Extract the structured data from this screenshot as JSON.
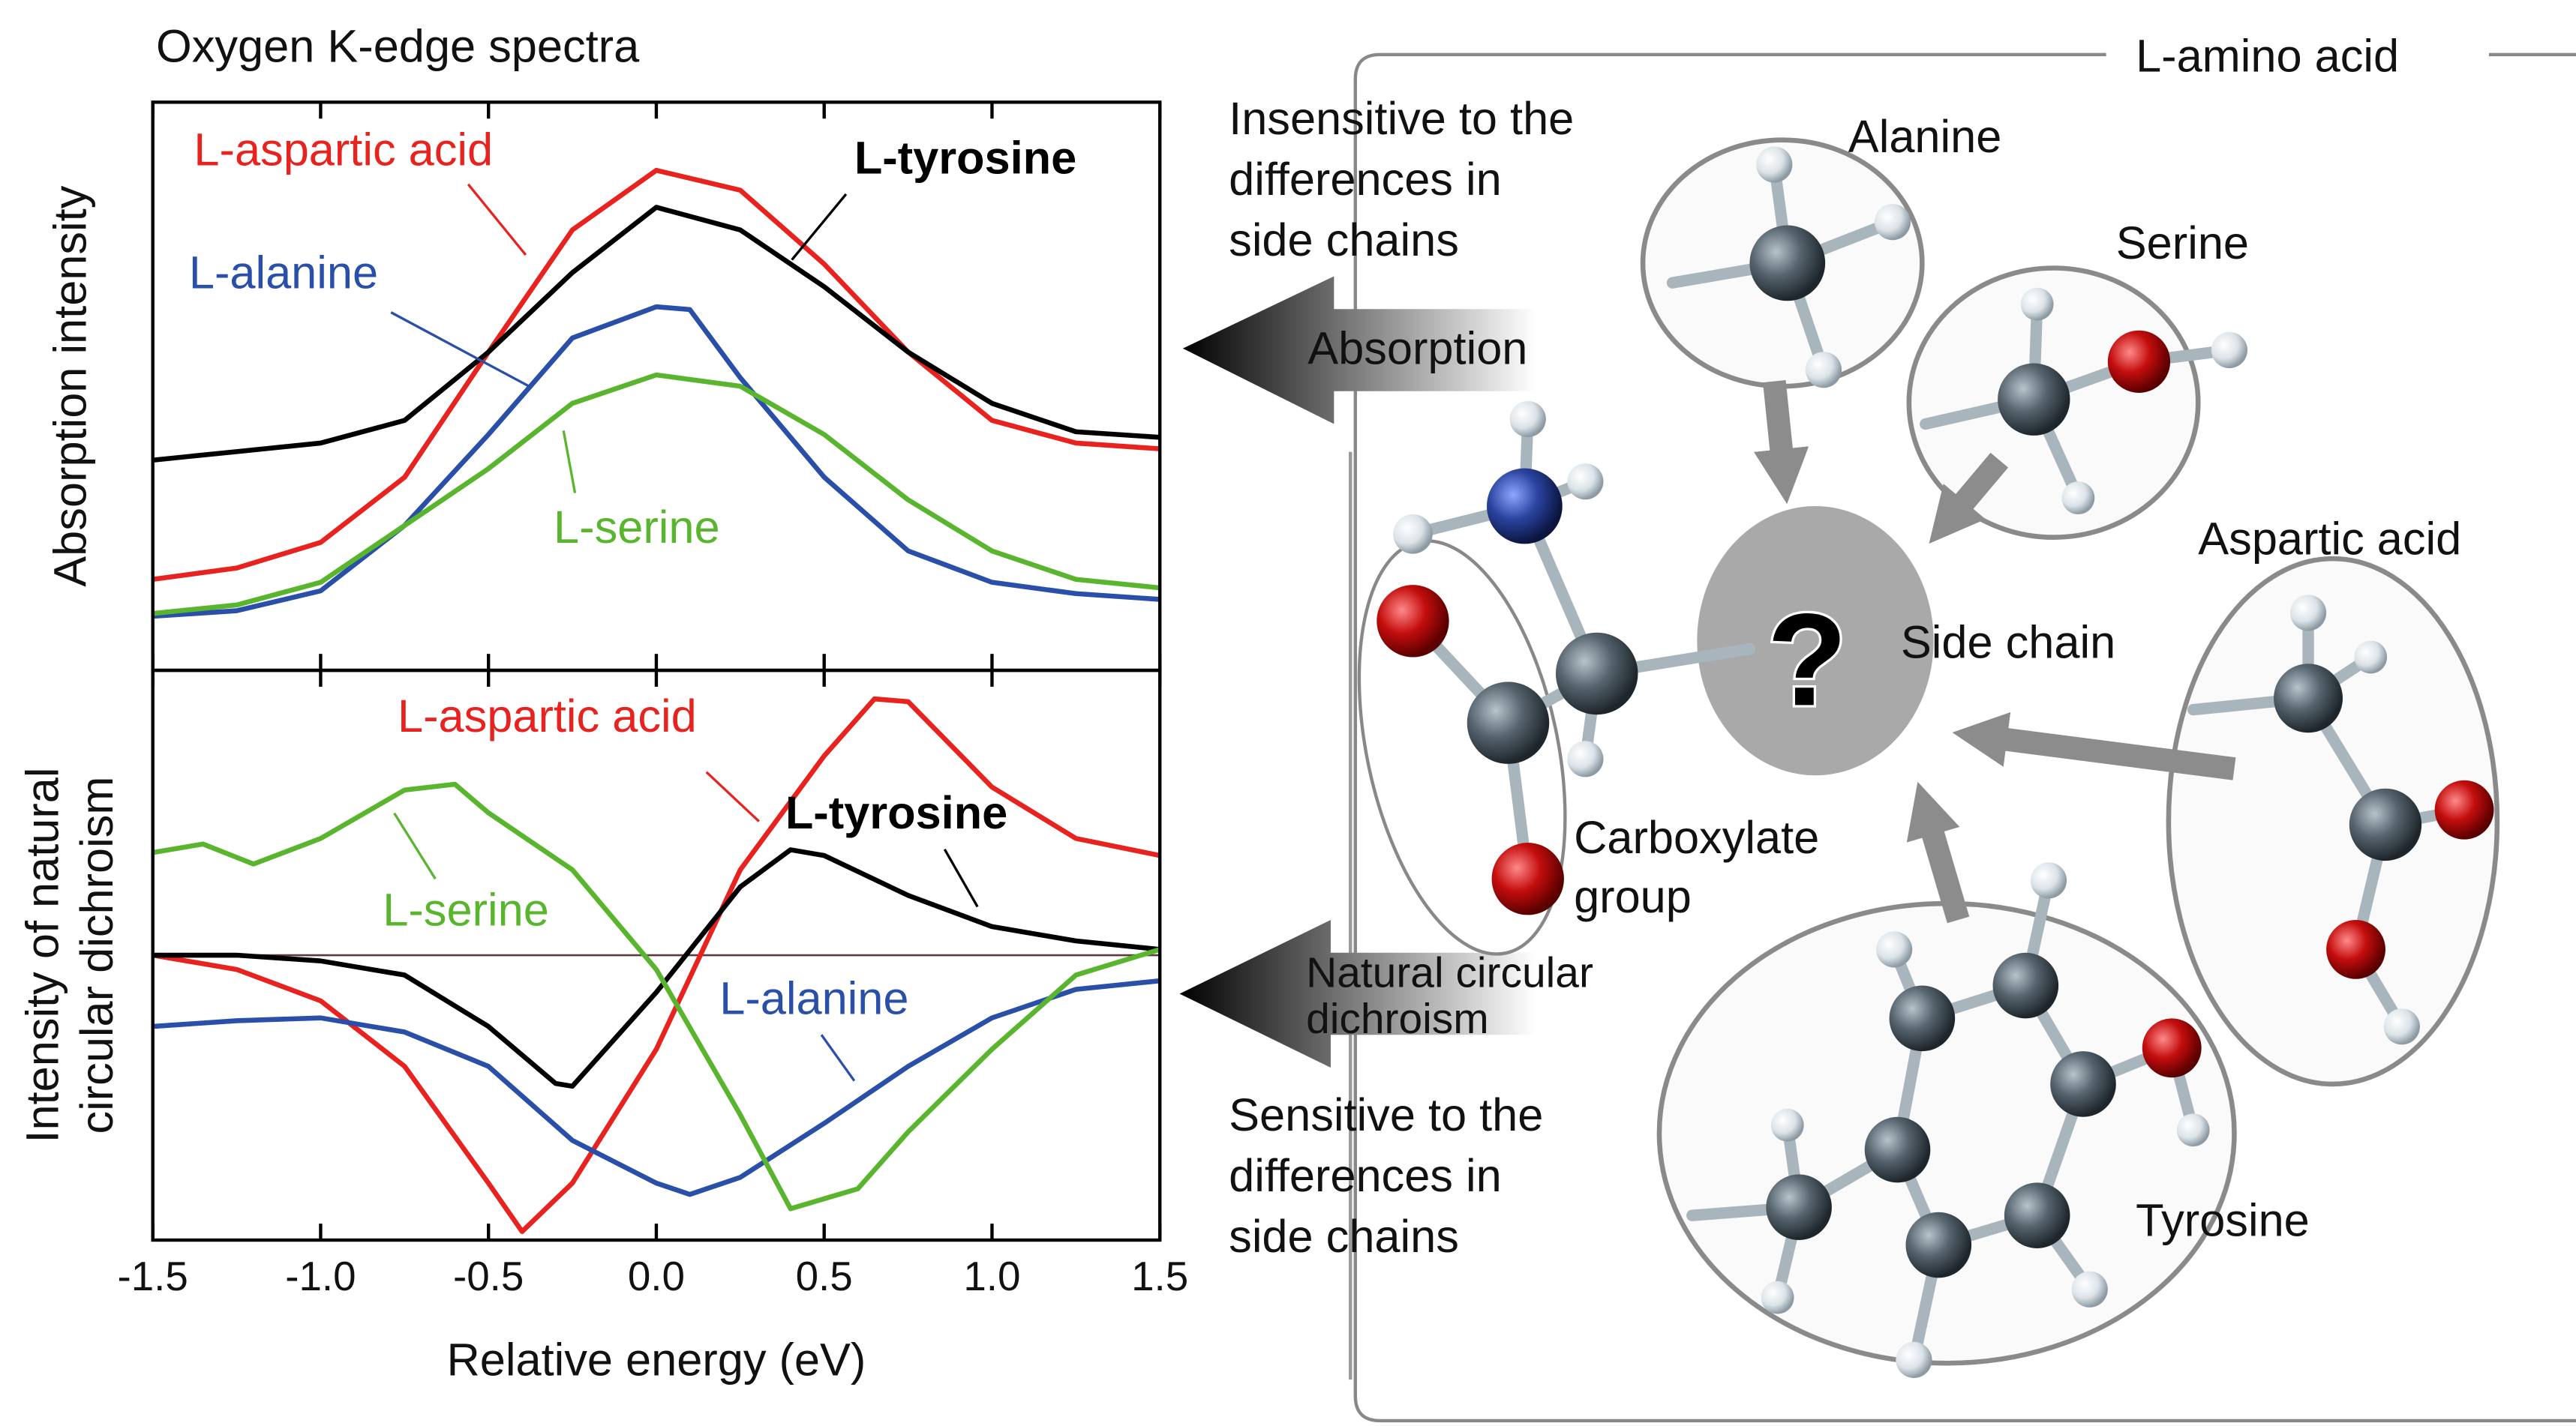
{
  "chart_data": [
    {
      "type": "line",
      "title": "Oxygen K-edge spectra",
      "ylabel": "Absorption intensity",
      "xlim": [
        -1.5,
        1.5
      ],
      "ylim": [
        0,
        1
      ],
      "xticks": [
        -1.5,
        -1,
        -0.5,
        0,
        0.5,
        1,
        1.5
      ],
      "series": [
        {
          "name": "L-aspartic acid",
          "color": "#e8231f",
          "x": [
            -1.5,
            -1.25,
            -1,
            -0.75,
            -0.5,
            -0.25,
            0,
            0.25,
            0.5,
            0.75,
            1,
            1.25,
            1.5
          ],
          "values": [
            0.16,
            0.18,
            0.225,
            0.34,
            0.56,
            0.775,
            0.88,
            0.845,
            0.715,
            0.56,
            0.44,
            0.4,
            0.39
          ]
        },
        {
          "name": "L-tyrosine",
          "color": "#000000",
          "x": [
            -1.5,
            -1.25,
            -1,
            -0.75,
            -0.5,
            -0.25,
            0,
            0.25,
            0.5,
            0.75,
            1,
            1.25,
            1.5
          ],
          "values": [
            0.37,
            0.385,
            0.4,
            0.44,
            0.56,
            0.7,
            0.815,
            0.775,
            0.675,
            0.56,
            0.47,
            0.42,
            0.41
          ]
        },
        {
          "name": "L-alanine",
          "color": "#2a4fa8",
          "x": [
            -1.5,
            -1.25,
            -1,
            -0.75,
            -0.5,
            -0.25,
            0,
            0.1,
            0.25,
            0.5,
            0.75,
            1,
            1.25,
            1.5
          ],
          "values": [
            0.095,
            0.105,
            0.14,
            0.255,
            0.415,
            0.585,
            0.64,
            0.635,
            0.515,
            0.34,
            0.21,
            0.155,
            0.135,
            0.125
          ]
        },
        {
          "name": "L-serine",
          "color": "#5ab52e",
          "x": [
            -1.5,
            -1.25,
            -1,
            -0.75,
            -0.5,
            -0.25,
            0,
            0.25,
            0.5,
            0.75,
            1,
            1.25,
            1.5
          ],
          "values": [
            0.1,
            0.115,
            0.155,
            0.255,
            0.355,
            0.47,
            0.52,
            0.5,
            0.415,
            0.3,
            0.21,
            0.16,
            0.145
          ]
        }
      ]
    },
    {
      "type": "line",
      "ylabel": [
        "Intensity of natural",
        "circular dichroism"
      ],
      "xlabel": "Relative energy (eV)",
      "xlim": [
        -1.5,
        1.5
      ],
      "ylim": [
        -1,
        1
      ],
      "hline": 0,
      "xticks": [
        -1.5,
        {
          "value": -1,
          "label": "-1.0"
        },
        -0.5,
        {
          "value": 0,
          "label": "0.0"
        },
        0.5,
        {
          "value": 1,
          "label": "1.0"
        },
        1.5
      ],
      "series": [
        {
          "name": "L-aspartic acid",
          "color": "#e8231f",
          "x": [
            -1.5,
            -1.25,
            -1,
            -0.75,
            -0.5,
            -0.4,
            -0.25,
            0,
            0.25,
            0.5,
            0.65,
            0.75,
            1,
            1.25,
            1.5
          ],
          "values": [
            0,
            -0.05,
            -0.16,
            -0.39,
            -0.8,
            -0.97,
            -0.8,
            -0.33,
            0.3,
            0.7,
            0.9,
            0.89,
            0.59,
            0.41,
            0.35
          ]
        },
        {
          "name": "L-tyrosine",
          "color": "#000000",
          "x": [
            -1.5,
            -1.25,
            -1,
            -0.75,
            -0.5,
            -0.3,
            -0.25,
            0,
            0.25,
            0.4,
            0.5,
            0.75,
            1,
            1.25,
            1.5
          ],
          "values": [
            0,
            0,
            -0.02,
            -0.07,
            -0.25,
            -0.45,
            -0.46,
            -0.13,
            0.24,
            0.37,
            0.35,
            0.21,
            0.1,
            0.05,
            0.02
          ]
        },
        {
          "name": "L-alanine",
          "color": "#2a4fa8",
          "x": [
            -1.5,
            -1.25,
            -1,
            -0.75,
            -0.5,
            -0.25,
            0,
            0.1,
            0.25,
            0.5,
            0.75,
            1,
            1.25,
            1.5
          ],
          "values": [
            -0.25,
            -0.23,
            -0.22,
            -0.27,
            -0.39,
            -0.65,
            -0.8,
            -0.84,
            -0.78,
            -0.59,
            -0.39,
            -0.22,
            -0.12,
            -0.09
          ]
        },
        {
          "name": "L-serine",
          "color": "#5ab52e",
          "x": [
            -1.5,
            -1.35,
            -1.2,
            -1,
            -0.75,
            -0.6,
            -0.5,
            -0.25,
            0,
            0.25,
            0.4,
            0.6,
            0.75,
            1,
            1.25,
            1.5
          ],
          "values": [
            0.36,
            0.39,
            0.32,
            0.41,
            0.58,
            0.6,
            0.5,
            0.3,
            -0.05,
            -0.56,
            -0.89,
            -0.82,
            -0.62,
            -0.33,
            -0.07,
            0.02
          ]
        }
      ]
    }
  ],
  "diagram": {
    "title": "L-amino acid",
    "insensitive": [
      "Insensitive to the",
      "differences in",
      "side chains"
    ],
    "absorption": "Absorption",
    "ncd": [
      "Natural circular",
      "dichroism"
    ],
    "sensitive": [
      "Sensitive to the",
      "differences in",
      "side chains"
    ],
    "molecules": [
      "Alanine",
      "Serine",
      "Aspartic acid",
      "Tyrosine"
    ],
    "side_chain": "Side chain",
    "unknown": "?",
    "carboxylate": [
      "Carboxylate",
      "group"
    ]
  }
}
